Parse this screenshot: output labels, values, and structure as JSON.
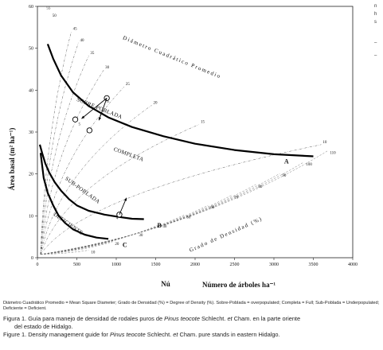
{
  "right_marks": [
    "n",
    "h",
    "s",
    "–",
    "–"
  ],
  "chart_data": {
    "type": "line",
    "title": "",
    "xlabel": "Número de árboles ha⁻¹",
    "xlabel_prefix": "Nú",
    "ylabel": "Área basal (m² ha⁻¹)",
    "xlim": [
      0,
      4000
    ],
    "ylim": [
      0,
      60
    ],
    "x_ticks": [
      "0",
      "500",
      "1000",
      "1500",
      "2000",
      "2500",
      "3000",
      "3500",
      "4000"
    ],
    "y_ticks": [
      "0",
      "10",
      "20",
      "30",
      "40",
      "50",
      "60"
    ],
    "grid": false,
    "series": [
      {
        "name": "A",
        "x": [
          130,
          200,
          300,
          450,
          650,
          900,
          1200,
          1600,
          2000,
          2500,
          3000,
          3500
        ],
        "y": [
          51,
          47.5,
          43.5,
          39.5,
          36.2,
          33.5,
          31.2,
          29,
          27.2,
          25.7,
          24.7,
          24.2
        ]
      },
      {
        "name": "B",
        "x": [
          30,
          60,
          100,
          150,
          220,
          300,
          400,
          500,
          650,
          850,
          1050,
          1200,
          1350
        ],
        "y": [
          27,
          25,
          22.5,
          20.3,
          18,
          16,
          14,
          12.5,
          11.2,
          10.3,
          9.7,
          9.3,
          9.2
        ]
      },
      {
        "name": "C",
        "x": [
          40,
          80,
          130,
          200,
          270,
          350,
          450,
          600,
          750,
          900
        ],
        "y": [
          25,
          19,
          15.5,
          12.5,
          10,
          8.3,
          6.8,
          5.5,
          4.8,
          4.5
        ]
      }
    ],
    "curve_labels": [
      {
        "text": "A",
        "x": 3130,
        "y": 22.5
      },
      {
        "text": "B",
        "x": 1520,
        "y": 7.2
      },
      {
        "text": "C",
        "x": 1080,
        "y": 2.6
      }
    ],
    "region_labels": [
      {
        "text": "SOBRE POBLADA",
        "x": 780,
        "y": 35.3,
        "rotate": 22
      },
      {
        "text": "COMPLETA",
        "x": 1150,
        "y": 24.3,
        "rotate": 20
      },
      {
        "text": "SUB-POBLADA",
        "x": 560,
        "y": 15.8,
        "rotate": 36
      },
      {
        "text": "DEFICIENTE",
        "x": 380,
        "y": 7.8,
        "rotate": 35
      }
    ],
    "diameter_curve": {
      "title": "Diámetro Cuadrático Promedio",
      "apex": [
        40,
        0.8
      ],
      "lines": [
        {
          "label": "45",
          "end": [
            430,
            54.0
          ]
        },
        {
          "label": "40",
          "end": [
            520,
            51.3
          ]
        },
        {
          "label": "35",
          "end": [
            650,
            48.2
          ]
        },
        {
          "label": "30",
          "end": [
            840,
            44.8
          ]
        },
        {
          "label": "25",
          "end": [
            1100,
            40.8
          ]
        },
        {
          "label": "20",
          "end": [
            1450,
            36.4
          ]
        },
        {
          "label": "15",
          "end": [
            2050,
            31.8
          ]
        },
        {
          "label": "10",
          "end": [
            3600,
            27.0
          ]
        }
      ],
      "extra_labels": [
        "50",
        "55"
      ]
    },
    "density_curve": {
      "title": "Grado de Densidad (%)",
      "edge_labels": [
        "110",
        "100",
        "90",
        "80",
        "70",
        "60",
        "50",
        "40",
        "30",
        "20",
        "10"
      ]
    },
    "annotations": [
      {
        "text": "4",
        "x": 1000,
        "y": 9.2
      },
      {
        "text": "5",
        "x": 520,
        "y": 31.6
      },
      {
        "text": "6",
        "x": 880,
        "y": 37.0
      }
    ]
  },
  "caption": {
    "legend": "Diámetro Cuadrático Promedio = Mean Square Diameter; Grado de Densidad (%) = Degree of Density (%). Sobre-Poblada = overpopulated; Completa = Full; Sub-Poblada = Underpopulated; Deficiente = Deficient.",
    "es_prefix": "Figura 1. Guía para manejo de densidad de rodales puros de ",
    "es_species": "Pinus teocote",
    "es_mid": " Schlecht. ",
    "es_et": "et",
    "es_suffix": " Cham. en la parte oriente",
    "es_line2": "del estado de Hidalgo.",
    "en_prefix": "Figure 1. Density management guide for ",
    "en_species": "Pinus teocote",
    "en_mid": " Schlecht. ",
    "en_et": "et",
    "en_suffix": " Cham. pure stands in eastern Hidalgo."
  }
}
